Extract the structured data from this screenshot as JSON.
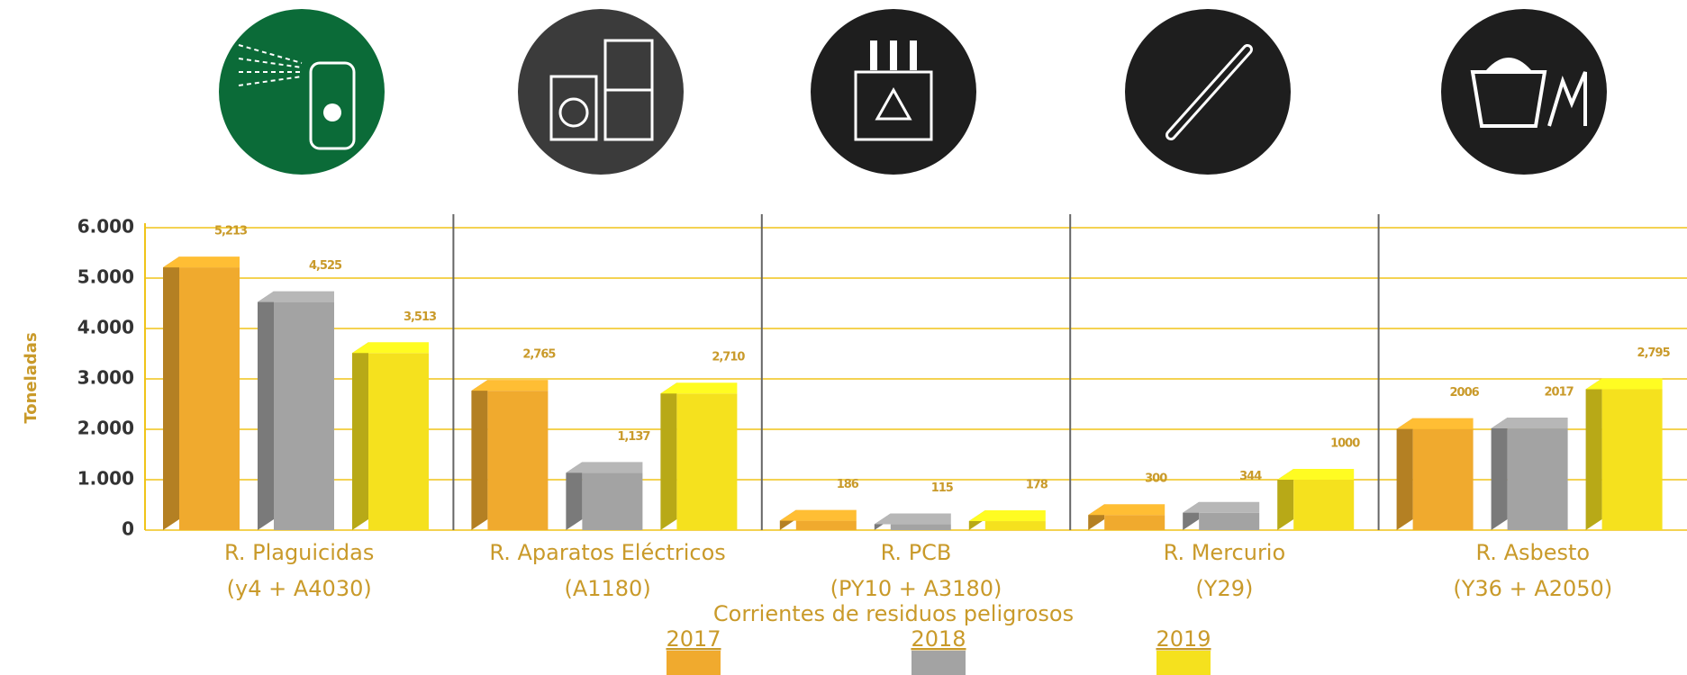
{
  "chart_data": {
    "type": "bar3d",
    "y_label": "Toneladas",
    "x_label": "Corrientes de residuos peligrosos",
    "categories": [
      [
        "R. Plaguicidas",
        "(y4 + A4030)"
      ],
      [
        "R. Aparatos Eléctricos",
        "(A1180)"
      ],
      [
        "R. PCB",
        "(PY10 + A3180)"
      ],
      [
        "R. Mercurio",
        "(Y29)"
      ],
      [
        "R. Asbesto",
        "(Y36 + A2050)"
      ]
    ],
    "series": [
      {
        "name": "2017",
        "color": "#f0aa2e",
        "values": [
          5213,
          2765,
          186,
          300,
          2006
        ],
        "value_labels": [
          "5,213",
          "2,765",
          "186",
          "300",
          "2006"
        ]
      },
      {
        "name": "2018",
        "color": "#a3a3a3",
        "values": [
          4525,
          1137,
          115,
          344,
          2017
        ],
        "value_labels": [
          "4,525",
          "1,137",
          "115",
          "344",
          "2017"
        ]
      },
      {
        "name": "2019",
        "color": "#f5e11e",
        "values": [
          3513,
          2710,
          178,
          1000,
          2795
        ],
        "value_labels": [
          "3,513",
          "2,710",
          "178",
          "1000",
          "2,795"
        ]
      }
    ],
    "ylim": [
      0,
      6000
    ],
    "yticks": [
      0,
      {
        "value": 1000,
        "label": "1.000"
      },
      {
        "value": 2000,
        "label": "2.000"
      },
      {
        "value": 3000,
        "label": "3.000"
      },
      {
        "value": 4000,
        "label": "4.000"
      },
      {
        "value": 5000,
        "label": "5.000"
      },
      {
        "value": 6000,
        "label": "6.000"
      }
    ],
    "grid": true
  }
}
